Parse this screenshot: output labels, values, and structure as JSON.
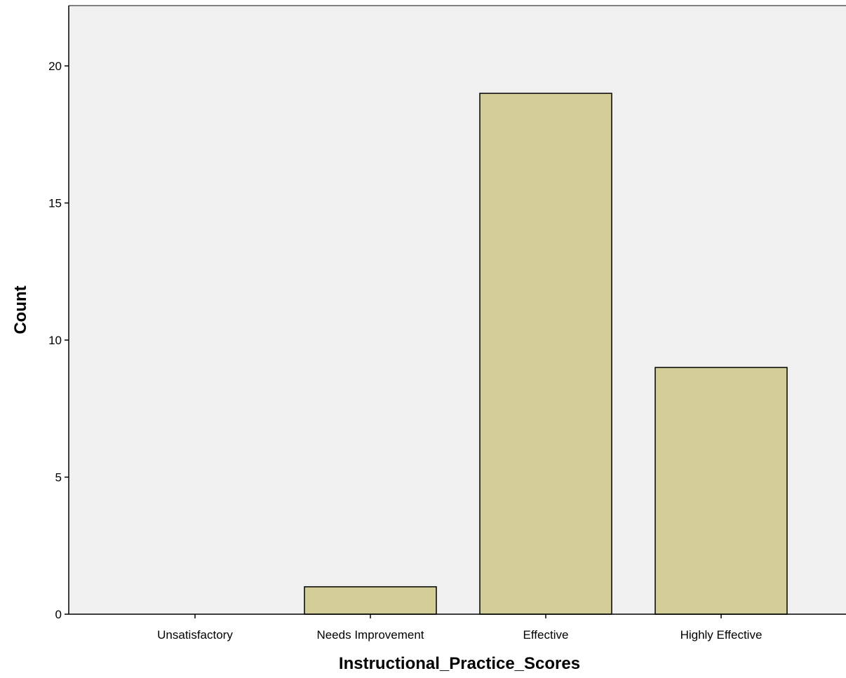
{
  "chart_data": {
    "type": "bar",
    "categories": [
      "Unsatisfactory",
      "Needs Improvement",
      "Effective",
      "Highly Effective"
    ],
    "values": [
      0,
      1,
      19,
      9
    ],
    "xlabel": "Instructional_Practice_Scores",
    "ylabel": "Count",
    "ylim": [
      0,
      22.2
    ],
    "yticks": [
      0,
      5,
      10,
      15,
      20
    ],
    "grid": false,
    "legend": "none",
    "colors": {
      "plot_background": "#f0f0f0",
      "bar_fill": "#d3ce97",
      "bar_stroke": "#000000",
      "axis": "#000000",
      "frame": "#808080"
    }
  }
}
